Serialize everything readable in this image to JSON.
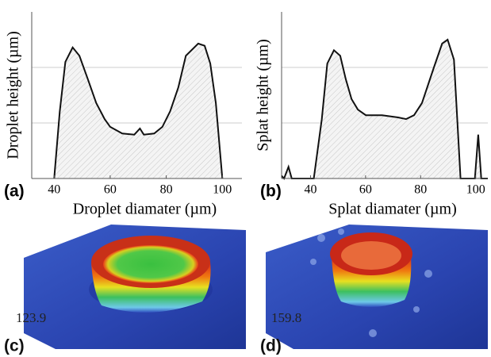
{
  "chart_data": [
    {
      "type": "line",
      "panel_label": "(a)",
      "x_label": "Droplet diamater (µm)",
      "y_label": "Droplet height (µm)",
      "x": [
        40,
        42,
        44,
        46.6,
        49,
        52,
        55,
        58,
        60,
        64.3,
        68.6,
        70.6,
        72,
        75.7,
        78.6,
        81.4,
        84.3,
        87,
        91.4,
        93.7,
        95.7,
        97.7,
        100
      ],
      "values": [
        0,
        1.2,
        2.1,
        2.36,
        2.21,
        1.79,
        1.36,
        1.07,
        0.93,
        0.81,
        0.79,
        0.9,
        0.79,
        0.81,
        0.93,
        1.21,
        1.64,
        2.21,
        2.43,
        2.39,
        2.07,
        1.36,
        0
      ],
      "color": "#111111",
      "fill": "hatch",
      "xlim": [
        32,
        107
      ],
      "xticks": [
        40,
        60,
        80,
        100
      ],
      "ylim": [
        0,
        3
      ],
      "yticks": [
        1,
        2
      ],
      "ytick_labels": false,
      "grid": true
    },
    {
      "type": "line",
      "panel_label": "(b)",
      "x_label": "Splat diamater (µm)",
      "y_label": "Splat height (µm)",
      "x": [
        29.5,
        30.4,
        32,
        33.2,
        41.2,
        44.1,
        46.1,
        48.5,
        50.8,
        52.8,
        54.9,
        57.2,
        60.1,
        66,
        71.8,
        74.7,
        77.6,
        80.5,
        84.8,
        87.8,
        89.8,
        92.1,
        94.5,
        99.7,
        100.9,
        102,
        104.4
      ],
      "values": [
        0.05,
        0,
        0.21,
        0,
        0,
        1.07,
        2.07,
        2.31,
        2.21,
        1.79,
        1.43,
        1.24,
        1.14,
        1.14,
        1.1,
        1.07,
        1.14,
        1.36,
        2,
        2.43,
        2.5,
        2.14,
        0,
        0,
        0.79,
        0,
        0
      ],
      "color": "#111111",
      "fill": "hatch",
      "xlim": [
        29.5,
        104.4
      ],
      "xticks": [
        40,
        60,
        80,
        100
      ],
      "ylim": [
        0,
        3
      ],
      "yticks": [
        1,
        2
      ],
      "ytick_labels": false,
      "grid": true
    }
  ],
  "images": [
    {
      "label": "(c)",
      "scale": 123.9
    },
    {
      "label": "(d)",
      "scale": 159.8
    }
  ]
}
